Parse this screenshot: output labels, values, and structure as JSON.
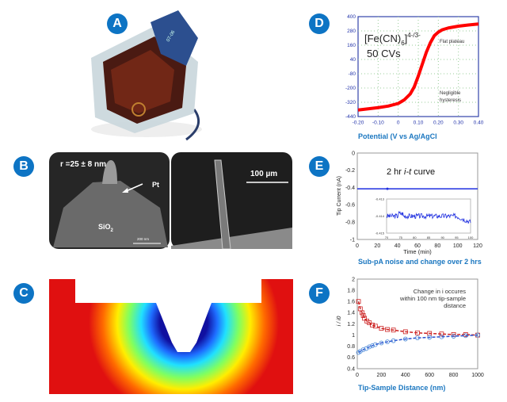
{
  "panels": {
    "A": {
      "label": "A",
      "device_text": "07-06"
    },
    "B": {
      "label": "B",
      "radius_text": "r =25 ± 8 nm",
      "pt_label": "Pt",
      "sio2_label": "SiO",
      "sio2_sub": "2",
      "scale_left": "200 nm",
      "scale_right": "100 µm"
    },
    "C": {
      "label": "C"
    },
    "D": {
      "label": "D",
      "caption": "Potential (V vs Ag/AgCl"
    },
    "E": {
      "label": "E",
      "caption": "Sub-pA noise and change over 2 hrs"
    },
    "F": {
      "label": "F",
      "caption": "Tip-Sample Distance (nm)"
    }
  },
  "colors": {
    "badge": "#0d74c4",
    "caption": "#1b77c0",
    "cv_line": "#ff0000",
    "it_line": "#1f2fe0",
    "f_red": "#cc2222",
    "f_blue": "#2a50d0"
  },
  "chart_data": [
    {
      "panel": "D",
      "type": "line",
      "annotation_main": "[Fe(CN)6]4-/3-",
      "annotation_main_parts": [
        "[Fe(CN)",
        "6",
        "]",
        "4-/3-"
      ],
      "annotation_cycles": "50 CVs",
      "annotations": [
        "Flat plateau",
        "Negligible",
        "hysteresis"
      ],
      "xlabel": "Potential (V vs Ag/AgCl",
      "ylabel": "",
      "xlim": [
        -0.2,
        0.4
      ],
      "ylim": [
        -440,
        400
      ],
      "xticks": [
        "-0.20",
        "-0.10",
        "0",
        "0.10",
        "0.20",
        "0.30",
        "0.40"
      ],
      "yticks": [
        "400",
        "280",
        "160",
        "40",
        "-80",
        "-200",
        "-320",
        "-440"
      ],
      "grid": true,
      "x": [
        -0.2,
        -0.15,
        -0.1,
        -0.05,
        0,
        0.03,
        0.06,
        0.08,
        0.1,
        0.12,
        0.14,
        0.16,
        0.18,
        0.2,
        0.22,
        0.25,
        0.3,
        0.35,
        0.4
      ],
      "y": [
        -385,
        -375,
        -365,
        -352,
        -330,
        -300,
        -250,
        -190,
        -100,
        0,
        100,
        180,
        240,
        270,
        290,
        305,
        320,
        330,
        338
      ]
    },
    {
      "panel": "E",
      "type": "line",
      "title": "2 hr i-t curve",
      "title_parts": [
        "2 hr ",
        "i-t",
        " curve"
      ],
      "xlabel": "Time (min)",
      "ylabel": "Tip Current (nA)",
      "xlim": [
        0,
        120
      ],
      "ylim": [
        -1,
        0
      ],
      "xticks": [
        "0",
        "20",
        "40",
        "60",
        "80",
        "100",
        "120"
      ],
      "yticks": [
        "0",
        "-0.2",
        "-0.4",
        "-0.6",
        "-0.8",
        "-1"
      ],
      "main_value": -0.414,
      "inset": {
        "xlim": [
          70,
          100
        ],
        "ylim": [
          -0.415,
          -0.413
        ],
        "xticks": [
          "70",
          "75",
          "80",
          "85",
          "90",
          "95",
          "100"
        ],
        "yticks": [
          "-0.413",
          "-0.414",
          "-0.415"
        ],
        "mean": -0.414,
        "end": -0.41435
      }
    },
    {
      "panel": "F",
      "type": "scatter",
      "annotation": [
        "Change in i occures",
        "within 100 nm tip-sample",
        "distance"
      ],
      "xlabel": "Tip-Sample Distance (nm)",
      "ylabel": "i / i0",
      "xlim": [
        0,
        1000
      ],
      "ylim": [
        0.4,
        2
      ],
      "xticks": [
        "0",
        "200",
        "400",
        "600",
        "800",
        "1000"
      ],
      "yticks": [
        "2",
        "1.8",
        "1.6",
        "1.4",
        "1.2",
        "1",
        "0.8",
        "0.6",
        "0.4"
      ],
      "series": [
        {
          "marker": "square",
          "x": [
            10,
            25,
            40,
            50,
            60,
            80,
            100,
            125,
            150,
            200,
            250,
            300,
            400,
            500,
            600,
            700,
            800,
            900,
            1000
          ],
          "y": [
            1.6,
            1.47,
            1.4,
            1.35,
            1.3,
            1.25,
            1.22,
            1.18,
            1.16,
            1.12,
            1.1,
            1.09,
            1.06,
            1.04,
            1.03,
            1.02,
            1.01,
            1.01,
            1.0
          ]
        },
        {
          "marker": "circle",
          "x": [
            10,
            25,
            50,
            75,
            100,
            125,
            150,
            200,
            250,
            300,
            400,
            500,
            600,
            700,
            800,
            900,
            1000
          ],
          "y": [
            0.69,
            0.71,
            0.74,
            0.76,
            0.79,
            0.81,
            0.83,
            0.86,
            0.88,
            0.9,
            0.93,
            0.95,
            0.96,
            0.97,
            0.98,
            0.99,
            1.0
          ]
        }
      ]
    }
  ]
}
